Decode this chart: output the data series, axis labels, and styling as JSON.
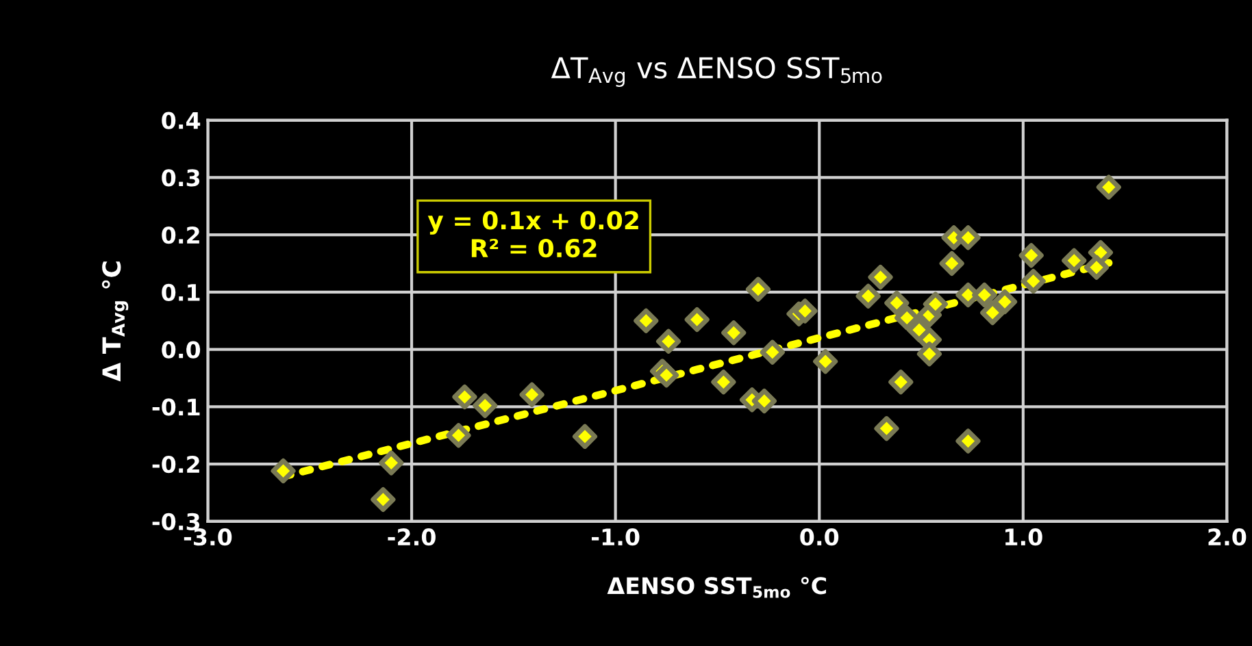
{
  "chart_data": {
    "type": "scatter",
    "title": "ΔT$_{Avg}$ vs ΔENSO SST$_{5mo}$",
    "xlabel": "ΔENSO SST$_{5mo}$ °C",
    "ylabel": "Δ T$_{Avg}$ °C",
    "xlim": [
      -3.0,
      2.0
    ],
    "ylim": [
      -0.3,
      0.4
    ],
    "xticks": [
      {
        "value": -3,
        "label": "-3.0"
      },
      {
        "value": -2,
        "label": "-2.0"
      },
      {
        "value": -1,
        "label": "-1.0"
      },
      {
        "value": 0,
        "label": "0.0"
      },
      {
        "value": 1,
        "label": "1.0"
      },
      {
        "value": 2,
        "label": "2.0"
      }
    ],
    "yticks": [
      {
        "value": -0.3,
        "label": "-0.3"
      },
      {
        "value": -0.2,
        "label": "-0.2"
      },
      {
        "value": -0.1,
        "label": "-0.1"
      },
      {
        "value": 0,
        "label": "0.0"
      },
      {
        "value": 0.1,
        "label": "0.1"
      },
      {
        "value": 0.2,
        "label": "0.2"
      },
      {
        "value": 0.3,
        "label": "0.3"
      },
      {
        "value": 0.4,
        "label": "0.4"
      }
    ],
    "grid": true,
    "legend": false,
    "annotations": [
      "y = 0.1x + 0.02\nR² = 0.62"
    ],
    "series": [
      {
        "color": "#ffff00",
        "marker": "diamond",
        "x": [
          -2.63,
          -2.14,
          -2.1,
          -1.74,
          -1.64,
          -1.77,
          -1.41,
          -1.15,
          -0.85,
          -0.74,
          -0.77,
          -0.75,
          -0.6,
          -0.42,
          -0.47,
          -0.3,
          -0.33,
          -0.27,
          -0.23,
          -0.1,
          -0.07,
          0.03,
          0.24,
          0.3,
          0.33,
          0.38,
          0.4,
          0.43,
          0.49,
          0.54,
          0.54,
          0.54,
          0.57,
          0.66,
          0.73,
          0.65,
          0.73,
          0.73,
          0.81,
          0.85,
          0.91,
          1.42,
          1.04,
          1.05,
          1.25,
          1.38,
          1.36
        ],
        "values": [
          -0.212,
          -0.262,
          -0.198,
          -0.083,
          -0.098,
          -0.15,
          -0.079,
          -0.152,
          0.05,
          0.014,
          -0.038,
          -0.045,
          0.052,
          0.029,
          -0.057,
          0.105,
          -0.088,
          -0.09,
          -0.005,
          0.062,
          0.067,
          -0.021,
          0.093,
          0.126,
          -0.138,
          0.081,
          -0.057,
          0.055,
          0.034,
          0.017,
          -0.008,
          0.06,
          0.079,
          0.195,
          0.195,
          0.15,
          -0.16,
          0.095,
          0.095,
          0.064,
          0.083,
          0.283,
          0.164,
          0.119,
          0.155,
          0.169,
          0.143
        ]
      },
      {
        "type": "line",
        "color": "#ffff00",
        "line_style": "dotted",
        "marker": "none",
        "x": [
          -2.63,
          1.42
        ],
        "values": [
          -0.222,
          0.151
        ]
      }
    ]
  }
}
